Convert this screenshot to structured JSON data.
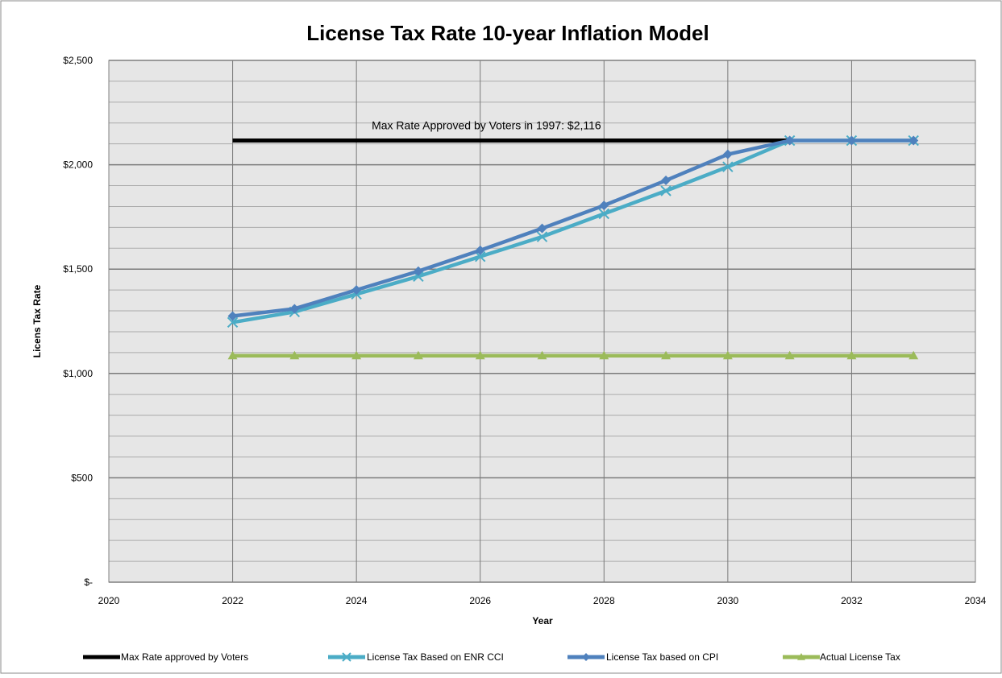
{
  "chart_data": {
    "type": "line",
    "title": "License Tax Rate 10-year Inflation Model",
    "xlabel": "Year",
    "ylabel": "Licens Tax Rate",
    "xlim": [
      2020,
      2034
    ],
    "ylim": [
      0,
      2500
    ],
    "x_ticks": [
      2020,
      2022,
      2024,
      2026,
      2028,
      2030,
      2032,
      2034
    ],
    "x_tick_labels": [
      "2020",
      "2022",
      "2024",
      "2026",
      "2028",
      "2030",
      "2032",
      "2034"
    ],
    "y_ticks": [
      0,
      500,
      1000,
      1500,
      2000,
      2500
    ],
    "y_tick_labels": [
      "$-",
      "$500",
      "$1,000",
      "$1,500",
      "$2,000",
      "$2,500"
    ],
    "y_minor_step": 100,
    "grid": true,
    "legend_position": "bottom",
    "annotation": {
      "text": "Max Rate Approved by Voters in 1997:  $2,116",
      "x": 2026.1,
      "y": 2116
    },
    "series": [
      {
        "name": "Max Rate approved by Voters",
        "color": "#000000",
        "marker": "none",
        "x": [
          2022,
          2031
        ],
        "values": [
          2116,
          2116
        ]
      },
      {
        "name": "License Tax Based on ENR CCI",
        "color": "#4bacc6",
        "marker": "x",
        "x": [
          2022,
          2023,
          2024,
          2025,
          2026,
          2027,
          2028,
          2029,
          2030,
          2031,
          2032,
          2033
        ],
        "values": [
          1245,
          1295,
          1380,
          1465,
          1560,
          1655,
          1765,
          1875,
          1990,
          2116,
          2116,
          2116
        ]
      },
      {
        "name": "License Tax based on CPI",
        "color": "#4f81bd",
        "marker": "diamond",
        "x": [
          2022,
          2023,
          2024,
          2025,
          2026,
          2027,
          2028,
          2029,
          2030,
          2031,
          2032,
          2033
        ],
        "values": [
          1275,
          1310,
          1400,
          1490,
          1590,
          1695,
          1805,
          1925,
          2050,
          2116,
          2116,
          2116
        ]
      },
      {
        "name": "Actual License Tax",
        "color": "#9bbb59",
        "marker": "triangle",
        "x": [
          2022,
          2023,
          2024,
          2025,
          2026,
          2027,
          2028,
          2029,
          2030,
          2031,
          2032,
          2033
        ],
        "values": [
          1085,
          1085,
          1085,
          1085,
          1085,
          1085,
          1085,
          1085,
          1085,
          1085,
          1085,
          1085
        ]
      }
    ]
  }
}
